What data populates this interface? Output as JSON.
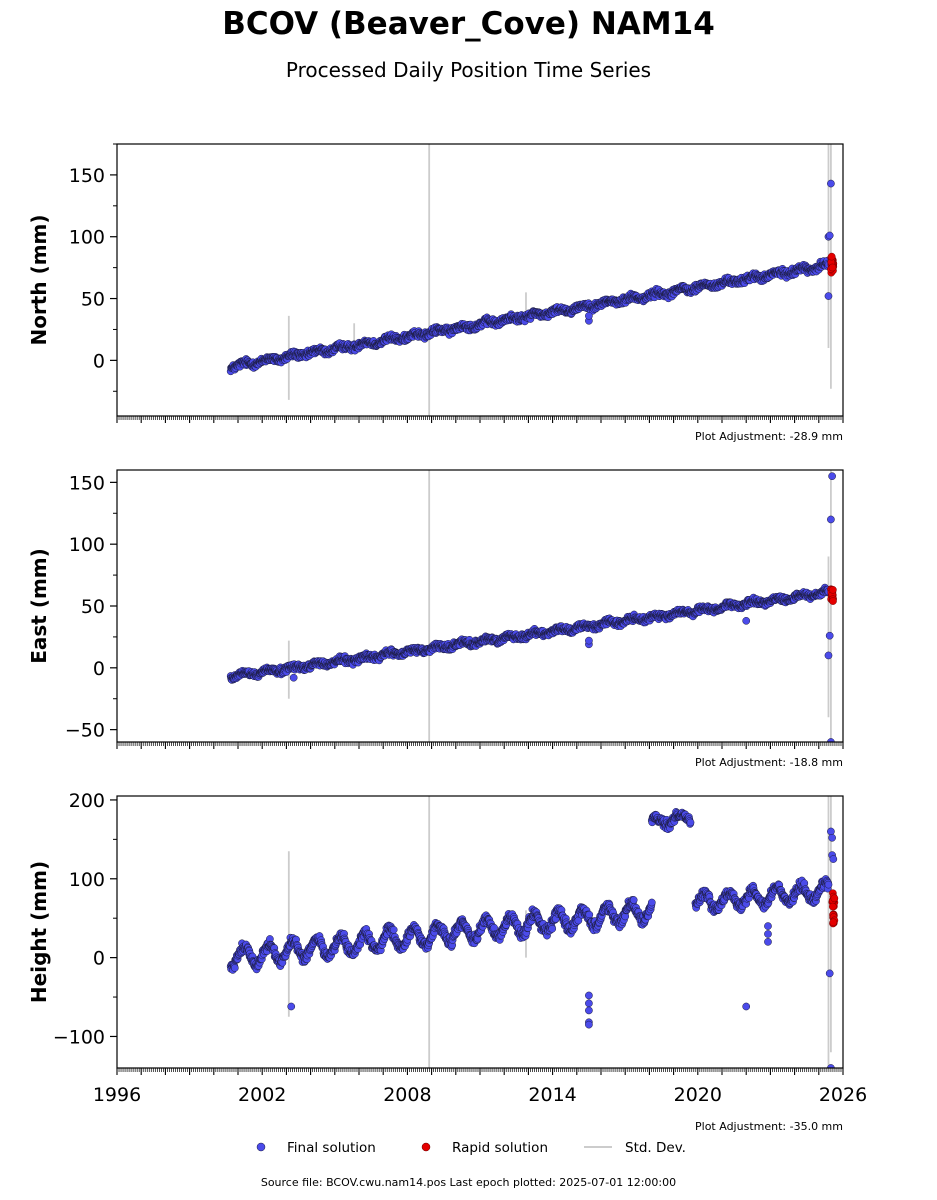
{
  "title": "BCOV (Beaver_Cove) NAM14",
  "subtitle": "Processed Daily Position Time Series",
  "source_line": "Source file: BCOV.cwu.nam14.pos  Last epoch plotted: 2025-07-01 12:00:00",
  "colors": {
    "final": "#4b4bea",
    "rapid": "#e40000",
    "stddev": "#cccccc"
  },
  "legend": [
    {
      "key": "final",
      "label": "Final solution"
    },
    {
      "key": "rapid",
      "label": "Rapid solution"
    },
    {
      "key": "stddev",
      "label": "Std. Dev."
    }
  ],
  "chart_data": [
    {
      "type": "scatter",
      "ylabel": "North (mm)",
      "adjustment": "Plot Adjustment: -28.9 mm",
      "xlim": [
        1996,
        2026
      ],
      "ylim": [
        -45,
        175
      ],
      "yticks": [
        0,
        50,
        100,
        150
      ],
      "grid": false,
      "series": [
        {
          "key": "final",
          "name": "Final solution",
          "kind": "trend",
          "segments": [
            {
              "start": 2000.7,
              "end": 2025.4,
              "y0": -5,
              "y1": 77,
              "spread": 4,
              "seasonal": 1.5
            }
          ],
          "points": [
            [
              2015.5,
              32
            ],
            [
              2015.5,
              36
            ],
            [
              2025.4,
              52
            ],
            [
              2025.4,
              100
            ],
            [
              2025.45,
              101
            ],
            [
              2025.5,
              143
            ]
          ]
        },
        {
          "key": "rapid",
          "name": "Rapid solution",
          "kind": "cluster",
          "x0": 2025.5,
          "x1": 2025.6,
          "y_min": 70,
          "y_max": 84
        },
        {
          "key": "stddev",
          "name": "Std. Dev.",
          "kind": "errorbars",
          "bars": [
            [
              2003.1,
              -32,
              36
            ],
            [
              2008.9,
              -45,
              175
            ],
            [
              2005.8,
              15,
              30
            ],
            [
              2012.9,
              40,
              55
            ],
            [
              2025.4,
              10,
              175
            ],
            [
              2025.5,
              -23,
              175
            ]
          ]
        }
      ]
    },
    {
      "type": "scatter",
      "ylabel": "East (mm)",
      "adjustment": "Plot Adjustment: -18.8 mm",
      "xlim": [
        1996,
        2026
      ],
      "ylim": [
        -60,
        160
      ],
      "yticks": [
        -50,
        0,
        50,
        100,
        150
      ],
      "grid": false,
      "series": [
        {
          "key": "final",
          "name": "Final solution",
          "kind": "trend",
          "segments": [
            {
              "start": 2000.7,
              "end": 2025.4,
              "y0": -7,
              "y1": 61,
              "spread": 3.5,
              "seasonal": 1.5
            }
          ],
          "points": [
            [
              2003.3,
              -8
            ],
            [
              2015.5,
              19
            ],
            [
              2015.5,
              22
            ],
            [
              2022.0,
              38
            ],
            [
              2025.4,
              10
            ],
            [
              2025.45,
              26
            ],
            [
              2025.5,
              120
            ],
            [
              2025.55,
              155
            ],
            [
              2025.5,
              -60
            ]
          ]
        },
        {
          "key": "rapid",
          "name": "Rapid solution",
          "kind": "cluster",
          "x0": 2025.5,
          "x1": 2025.6,
          "y_min": 53,
          "y_max": 64
        },
        {
          "key": "stddev",
          "name": "Std. Dev.",
          "kind": "errorbars",
          "bars": [
            [
              2003.1,
              -25,
              22
            ],
            [
              2008.9,
              -60,
              160
            ],
            [
              2025.4,
              -40,
              90
            ],
            [
              2025.5,
              -60,
              160
            ]
          ]
        }
      ]
    },
    {
      "type": "scatter",
      "ylabel": "Height (mm)",
      "adjustment": "Plot Adjustment: -35.0 mm",
      "xlim": [
        1996,
        2026
      ],
      "ylim": [
        -140,
        205
      ],
      "yticks": [
        -100,
        0,
        100,
        200
      ],
      "xticks": [
        1996,
        2002,
        2008,
        2014,
        2020,
        2026
      ],
      "grid": false,
      "series": [
        {
          "key": "final",
          "name": "Final solution",
          "kind": "trend",
          "segments": [
            {
              "start": 2000.7,
              "end": 2018.1,
              "y0": 0,
              "y1": 60,
              "spread": 9,
              "seasonal": 12
            },
            {
              "start": 2018.1,
              "end": 2019.7,
              "y0": 170,
              "y1": 180,
              "spread": 8,
              "seasonal": 6
            },
            {
              "start": 2019.9,
              "end": 2025.4,
              "y0": 70,
              "y1": 85,
              "spread": 9,
              "seasonal": 10
            }
          ],
          "points": [
            [
              2003.2,
              -62
            ],
            [
              2015.5,
              -48
            ],
            [
              2015.5,
              -58
            ],
            [
              2015.5,
              -67
            ],
            [
              2015.5,
              -82
            ],
            [
              2015.5,
              -85
            ],
            [
              2022.0,
              -62
            ],
            [
              2022.9,
              30
            ],
            [
              2022.9,
              40
            ],
            [
              2022.9,
              20
            ],
            [
              2025.45,
              -20
            ],
            [
              2025.5,
              160
            ],
            [
              2025.55,
              152
            ],
            [
              2025.55,
              130
            ],
            [
              2025.6,
              125
            ],
            [
              2025.5,
              -140
            ]
          ]
        },
        {
          "key": "rapid",
          "name": "Rapid solution",
          "kind": "cluster",
          "x0": 2025.55,
          "x1": 2025.65,
          "y_min": 43,
          "y_max": 82
        },
        {
          "key": "stddev",
          "name": "Std. Dev.",
          "kind": "errorbars",
          "bars": [
            [
              2003.1,
              -75,
              135
            ],
            [
              2008.9,
              -140,
              205
            ],
            [
              2012.9,
              0,
              60
            ],
            [
              2025.4,
              -140,
              205
            ],
            [
              2025.5,
              -120,
              205
            ]
          ]
        }
      ]
    }
  ]
}
